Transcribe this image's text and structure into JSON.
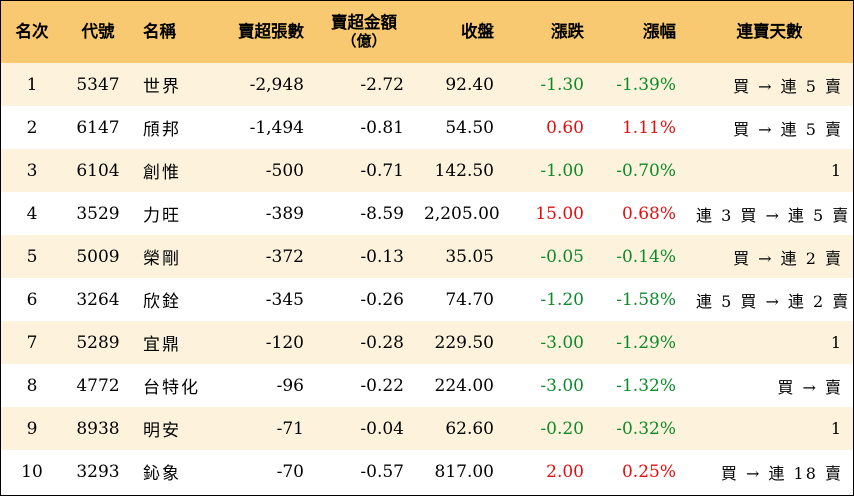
{
  "table": {
    "headers": {
      "rank": "名次",
      "code": "代號",
      "name": "名稱",
      "net_sell_lots": "賣超張數",
      "net_sell_amount": "賣超金額",
      "net_sell_amount_unit": "（億）",
      "close": "收盤",
      "change": "漲跌",
      "change_pct": "漲幅",
      "streak": "連賣天數"
    },
    "rows": [
      {
        "rank": "1",
        "code": "5347",
        "name": "世界",
        "lots": "-2,948",
        "amount": "-2.72",
        "close": "92.40",
        "change": "-1.30",
        "pct": "-1.39%",
        "streak": "買 → 連 5 賣",
        "dir": "neg"
      },
      {
        "rank": "2",
        "code": "6147",
        "name": "頎邦",
        "lots": "-1,494",
        "amount": "-0.81",
        "close": "54.50",
        "change": "0.60",
        "pct": "1.11%",
        "streak": "買 → 連 5 賣",
        "dir": "pos"
      },
      {
        "rank": "3",
        "code": "6104",
        "name": "創惟",
        "lots": "-500",
        "amount": "-0.71",
        "close": "142.50",
        "change": "-1.00",
        "pct": "-0.70%",
        "streak": "1",
        "dir": "neg"
      },
      {
        "rank": "4",
        "code": "3529",
        "name": "力旺",
        "lots": "-389",
        "amount": "-8.59",
        "close": "2,205.00",
        "change": "15.00",
        "pct": "0.68%",
        "streak": "連 3 買 → 連 5 賣",
        "dir": "pos"
      },
      {
        "rank": "5",
        "code": "5009",
        "name": "榮剛",
        "lots": "-372",
        "amount": "-0.13",
        "close": "35.05",
        "change": "-0.05",
        "pct": "-0.14%",
        "streak": "買 → 連 2 賣",
        "dir": "neg"
      },
      {
        "rank": "6",
        "code": "3264",
        "name": "欣銓",
        "lots": "-345",
        "amount": "-0.26",
        "close": "74.70",
        "change": "-1.20",
        "pct": "-1.58%",
        "streak": "連 5 買 → 連 2 賣",
        "dir": "neg"
      },
      {
        "rank": "7",
        "code": "5289",
        "name": "宜鼎",
        "lots": "-120",
        "amount": "-0.28",
        "close": "229.50",
        "change": "-3.00",
        "pct": "-1.29%",
        "streak": "1",
        "dir": "neg"
      },
      {
        "rank": "8",
        "code": "4772",
        "name": "台特化",
        "lots": "-96",
        "amount": "-0.22",
        "close": "224.00",
        "change": "-3.00",
        "pct": "-1.32%",
        "streak": "買 → 賣",
        "dir": "neg"
      },
      {
        "rank": "9",
        "code": "8938",
        "name": "明安",
        "lots": "-71",
        "amount": "-0.04",
        "close": "62.60",
        "change": "-0.20",
        "pct": "-0.32%",
        "streak": "1",
        "dir": "neg"
      },
      {
        "rank": "10",
        "code": "3293",
        "name": "鈊象",
        "lots": "-70",
        "amount": "-0.57",
        "close": "817.00",
        "change": "2.00",
        "pct": "0.25%",
        "streak": "買 → 連 18 賣",
        "dir": "pos"
      }
    ]
  },
  "colors": {
    "header_bg": "#F8C970",
    "stripe_bg": "#FDF3DC",
    "up": "#E01010",
    "down": "#0E8A2A"
  }
}
